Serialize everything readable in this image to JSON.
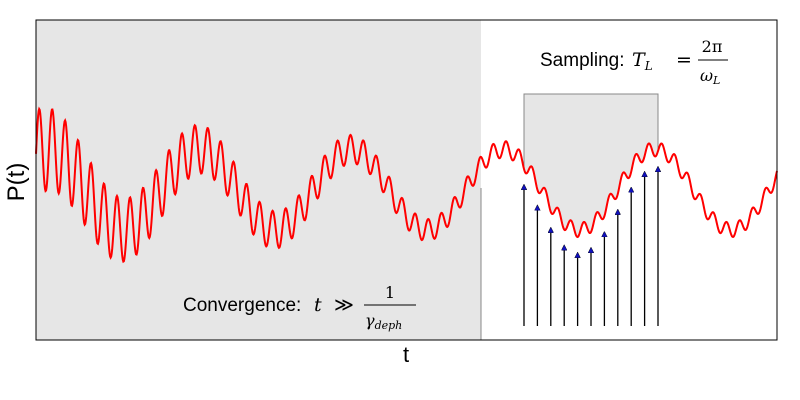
{
  "axes": {
    "ylabel": "P(t)",
    "xlabel": "t"
  },
  "annotations": {
    "convergence": {
      "label": "Convergence:",
      "lhs": "t",
      "op": "≫",
      "numerator": "1",
      "denominator_symbol": "γ",
      "denominator_sub": "deph"
    },
    "sampling": {
      "label": "Sampling:",
      "lhs_symbol": "T",
      "lhs_sub": "L",
      "op": "=",
      "numerator": "2π",
      "denominator_symbol": "ω",
      "denominator_sub": "L"
    }
  },
  "colors": {
    "signal": "#ff0000",
    "shade_fill": "#e6e6e6",
    "shade_edge": "#888888",
    "sample_marker": "#1010c0",
    "frame": "#000000"
  },
  "chart_data": {
    "type": "line",
    "signal": {
      "description_free": true,
      "slow_amplitude": 0.28,
      "slow_period": 0.205,
      "fast_period": 0.0175,
      "fast_amplitude_start": 0.3,
      "fast_amplitude_decay": 2.6,
      "fast_amplitude_floor": 0.05
    },
    "sample_count": 11
  }
}
